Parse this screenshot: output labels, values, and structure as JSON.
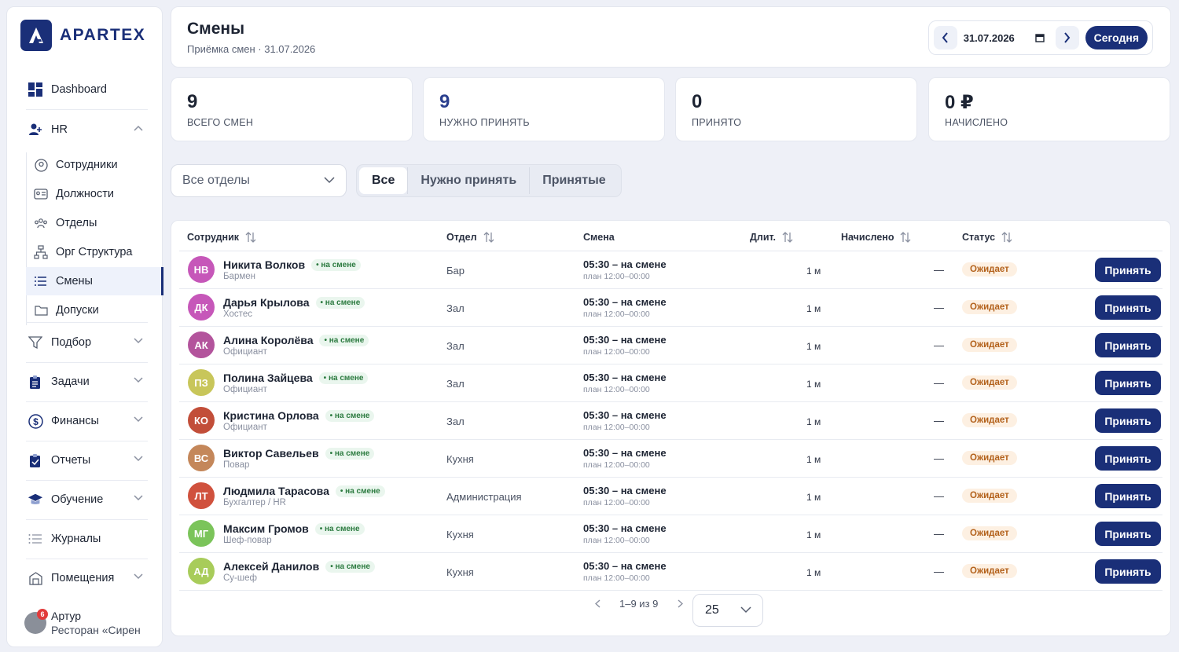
{
  "brand": {
    "name": "APARTEX",
    "color": "#1a2f78"
  },
  "nav": {
    "dashboard": "Dashboard",
    "hr": "HR",
    "hr_sub": [
      "Сотрудники",
      "Должности",
      "Отделы",
      "Орг Структура",
      "Смены",
      "Допуски"
    ],
    "recruit": "Подбор",
    "tasks": "Задачи",
    "finance": "Финансы",
    "reports": "Отчеты",
    "training": "Обучение",
    "journals": "Журналы",
    "rooms": "Помещения"
  },
  "user": {
    "name": "Артур",
    "org": "Ресторан «Сирен",
    "badge": "6"
  },
  "header": {
    "title": "Смены",
    "subtitle": "Приёмка смен · 31.07.2026",
    "date": "31.07.2026",
    "today": "Сегодня"
  },
  "stats": [
    {
      "value": "9",
      "label": "ВСЕГО СМЕН"
    },
    {
      "value": "9",
      "label": "НУЖНО ПРИНЯТЬ"
    },
    {
      "value": "0",
      "label": "ПРИНЯТО"
    },
    {
      "value": "0 ₽",
      "label": "НАЧИСЛЕНО"
    }
  ],
  "filters": {
    "department": "Все отделы",
    "tabs": [
      "Все",
      "Нужно принять",
      "Принятые"
    ]
  },
  "table": {
    "headers": {
      "employee": "Сотрудник",
      "dept": "Отдел",
      "shift": "Смена",
      "dur": "Длит.",
      "earned": "Начислено",
      "status": "Статус"
    },
    "rows": [
      {
        "initials": "НВ",
        "color": "#c657b9",
        "name": "Никита Волков",
        "role": "Бармен",
        "dept": "Бар"
      },
      {
        "initials": "ДК",
        "color": "#c657b9",
        "name": "Дарья Крылова",
        "role": "Хостес",
        "dept": "Зал"
      },
      {
        "initials": "АК",
        "color": "#b3549c",
        "name": "Алина Королёва",
        "role": "Официант",
        "dept": "Зал"
      },
      {
        "initials": "ПЗ",
        "color": "#c8c65a",
        "name": "Полина Зайцева",
        "role": "Официант",
        "dept": "Зал"
      },
      {
        "initials": "КО",
        "color": "#c24e39",
        "name": "Кристина Орлова",
        "role": "Официант",
        "dept": "Зал"
      },
      {
        "initials": "ВС",
        "color": "#c4875a",
        "name": "Виктор Савельев",
        "role": "Повар",
        "dept": "Кухня"
      },
      {
        "initials": "ЛТ",
        "color": "#d0513d",
        "name": "Людмила Тарасова",
        "role": "Бухгалтер / HR",
        "dept": "Администрация"
      },
      {
        "initials": "МГ",
        "color": "#7bc45a",
        "name": "Максим Громов",
        "role": "Шеф-повар",
        "dept": "Кухня"
      },
      {
        "initials": "АД",
        "color": "#a8cc5a",
        "name": "Алексей Данилов",
        "role": "Су-шеф",
        "dept": "Кухня"
      }
    ],
    "common": {
      "on_shift": "• на смене",
      "shift": "05:30 – на смене",
      "plan": "план 12:00–00:00",
      "dur": "1 м",
      "earned": "—",
      "status": "Ожидает",
      "accept": "Принять"
    }
  },
  "pagination": {
    "range": "1–9 из 9",
    "page_size": "25"
  }
}
